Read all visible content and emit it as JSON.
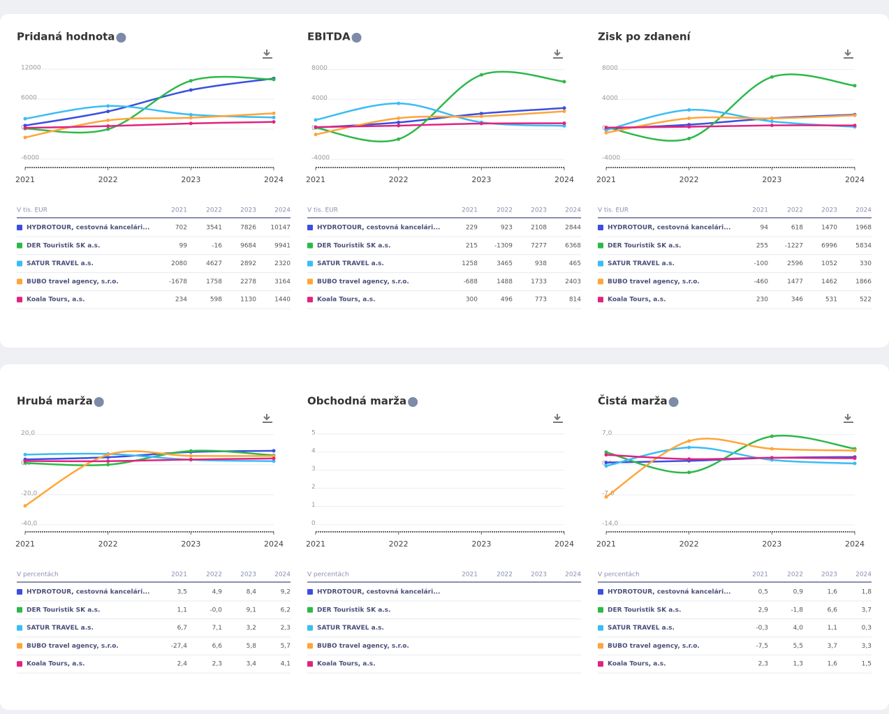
{
  "chart_data": [
    {
      "type": "line",
      "title": "Pridaná hodnota",
      "table_header": "V tis. EUR",
      "categories": [
        "2021",
        "2022",
        "2023",
        "2024"
      ],
      "ylim": [
        -7700,
        13000
      ],
      "yticks": [
        -6000,
        0,
        6000,
        12000
      ],
      "grid": true,
      "series": [
        {
          "name": "HYDROTOUR, cestovná kancelári...",
          "color": "#3a4fe0",
          "values": [
            702,
            3541,
            7826,
            10147
          ]
        },
        {
          "name": "DER Touristik SK a.s.",
          "color": "#2eb84a",
          "values": [
            99,
            -16,
            9684,
            9941
          ]
        },
        {
          "name": "SATUR TRAVEL a.s.",
          "color": "#3bbcf5",
          "values": [
            2080,
            4627,
            2892,
            2320
          ]
        },
        {
          "name": "BUBO travel agency, s.r.o.",
          "color": "#ffa53a",
          "values": [
            -1678,
            1758,
            2278,
            3164
          ]
        },
        {
          "name": "Koala Tours, a.s.",
          "color": "#e0237f",
          "values": [
            234,
            598,
            1130,
            1440
          ]
        }
      ]
    },
    {
      "type": "line",
      "title": "EBITDA",
      "table_header": "V tis. EUR",
      "categories": [
        "2021",
        "2022",
        "2023",
        "2024"
      ],
      "ylim": [
        -5100,
        8700
      ],
      "yticks": [
        -4000,
        0,
        4000,
        8000
      ],
      "grid": true,
      "series": [
        {
          "name": "HYDROTOUR, cestovná kancelári...",
          "color": "#3a4fe0",
          "values": [
            229,
            923,
            2108,
            2844
          ]
        },
        {
          "name": "DER Touristik SK a.s.",
          "color": "#2eb84a",
          "values": [
            215,
            -1309,
            7277,
            6368
          ]
        },
        {
          "name": "SATUR TRAVEL a.s.",
          "color": "#3bbcf5",
          "values": [
            1258,
            3465,
            938,
            465
          ]
        },
        {
          "name": "BUBO travel agency, s.r.o.",
          "color": "#ffa53a",
          "values": [
            -688,
            1488,
            1733,
            2403
          ]
        },
        {
          "name": "Koala Tours, a.s.",
          "color": "#e0237f",
          "values": [
            300,
            496,
            773,
            814
          ]
        }
      ]
    },
    {
      "type": "line",
      "title": "Zisk po zdanení",
      "table_header": "V tis. EUR",
      "categories": [
        "2021",
        "2022",
        "2023",
        "2024"
      ],
      "ylim": [
        -5100,
        8700
      ],
      "yticks": [
        -4000,
        0,
        4000,
        8000
      ],
      "grid": true,
      "series": [
        {
          "name": "HYDROTOUR, cestovná kancelári...",
          "color": "#3a4fe0",
          "values": [
            94,
            618,
            1470,
            1968
          ]
        },
        {
          "name": "DER Touristik SK a.s.",
          "color": "#2eb84a",
          "values": [
            255,
            -1227,
            6996,
            5834
          ]
        },
        {
          "name": "SATUR TRAVEL a.s.",
          "color": "#3bbcf5",
          "values": [
            -100,
            2596,
            1052,
            330
          ]
        },
        {
          "name": "BUBO travel agency, s.r.o.",
          "color": "#ffa53a",
          "values": [
            -460,
            1477,
            1462,
            1866
          ]
        },
        {
          "name": "Koala Tours, a.s.",
          "color": "#e0237f",
          "values": [
            230,
            346,
            531,
            522
          ]
        }
      ]
    },
    {
      "type": "line",
      "title": "Hrubá marža",
      "table_header": "V percentách",
      "categories": [
        "2021",
        "2022",
        "2023",
        "2024"
      ],
      "ylim": [
        -44.7,
        24
      ],
      "yticks": [
        {
          "value": -40,
          "label": "-40,0"
        },
        {
          "value": -20,
          "label": "-20,0"
        },
        {
          "value": 0,
          "label": "0,0"
        },
        {
          "value": 20,
          "label": "20,0"
        }
      ],
      "grid": true,
      "series": [
        {
          "name": "HYDROTOUR, cestovná kancelári...",
          "color": "#3a4fe0",
          "values": [
            3.5,
            4.9,
            8.4,
            9.2
          ],
          "value_labels": [
            "3,5",
            "4,9",
            "8,4",
            "9,2"
          ]
        },
        {
          "name": "DER Touristik SK a.s.",
          "color": "#2eb84a",
          "values": [
            1.1,
            -0.04,
            9.1,
            6.2
          ],
          "value_labels": [
            "1,1",
            "-0,0",
            "9,1",
            "6,2"
          ]
        },
        {
          "name": "SATUR TRAVEL a.s.",
          "color": "#3bbcf5",
          "values": [
            6.7,
            7.1,
            3.2,
            2.3
          ],
          "value_labels": [
            "6,7",
            "7,1",
            "3,2",
            "2,3"
          ]
        },
        {
          "name": "BUBO travel agency, s.r.o.",
          "color": "#ffa53a",
          "values": [
            -27.4,
            6.6,
            5.8,
            5.7
          ],
          "value_labels": [
            "-27,4",
            "6,6",
            "5,8",
            "5,7"
          ]
        },
        {
          "name": "Koala Tours, a.s.",
          "color": "#e0237f",
          "values": [
            2.4,
            2.3,
            3.4,
            4.1
          ],
          "value_labels": [
            "2,4",
            "2,3",
            "3,4",
            "4,1"
          ]
        }
      ]
    },
    {
      "type": "line",
      "title": "Obchodná marža",
      "table_header": "V percentách",
      "categories": [
        "2021",
        "2022",
        "2023",
        "2024"
      ],
      "ylim": [
        -0.4,
        5.3
      ],
      "yticks": [
        0,
        1,
        2,
        3,
        4,
        5
      ],
      "grid": true,
      "series": [
        {
          "name": "HYDROTOUR, cestovná kancelári...",
          "color": "#3a4fe0",
          "values": [
            null,
            null,
            null,
            null
          ]
        },
        {
          "name": "DER Touristik SK a.s.",
          "color": "#2eb84a",
          "values": [
            null,
            null,
            null,
            null
          ]
        },
        {
          "name": "SATUR TRAVEL a.s.",
          "color": "#3bbcf5",
          "values": [
            null,
            null,
            null,
            null
          ]
        },
        {
          "name": "BUBO travel agency, s.r.o.",
          "color": "#ffa53a",
          "values": [
            null,
            null,
            null,
            null
          ]
        },
        {
          "name": "Koala Tours, a.s.",
          "color": "#e0237f",
          "values": [
            null,
            null,
            null,
            null
          ]
        }
      ]
    },
    {
      "type": "line",
      "title": "Čistá marža",
      "table_header": "V percentách",
      "categories": [
        "2021",
        "2022",
        "2023",
        "2024"
      ],
      "ylim": [
        -15.6,
        8.4
      ],
      "yticks": [
        {
          "value": -14,
          "label": "-14,0"
        },
        {
          "value": -7,
          "label": "-7,0"
        },
        {
          "value": 0,
          "label": "0,0"
        },
        {
          "value": 7,
          "label": "7,0"
        }
      ],
      "grid": true,
      "series": [
        {
          "name": "HYDROTOUR, cestovná kancelári...",
          "color": "#3a4fe0",
          "values": [
            0.5,
            0.9,
            1.6,
            1.8
          ],
          "value_labels": [
            "0,5",
            "0,9",
            "1,6",
            "1,8"
          ]
        },
        {
          "name": "DER Touristik SK a.s.",
          "color": "#2eb84a",
          "values": [
            2.9,
            -1.8,
            6.6,
            3.7
          ],
          "value_labels": [
            "2,9",
            "-1,8",
            "6,6",
            "3,7"
          ]
        },
        {
          "name": "SATUR TRAVEL a.s.",
          "color": "#3bbcf5",
          "values": [
            -0.3,
            4.0,
            1.1,
            0.3
          ],
          "value_labels": [
            "-0,3",
            "4,0",
            "1,1",
            "0,3"
          ]
        },
        {
          "name": "BUBO travel agency, s.r.o.",
          "color": "#ffa53a",
          "values": [
            -7.5,
            5.5,
            3.7,
            3.3
          ],
          "value_labels": [
            "-7,5",
            "5,5",
            "3,7",
            "3,3"
          ]
        },
        {
          "name": "Koala Tours, a.s.",
          "color": "#e0237f",
          "values": [
            2.3,
            1.3,
            1.6,
            1.5
          ],
          "value_labels": [
            "2,3",
            "1,3",
            "1,6",
            "1,5"
          ]
        }
      ]
    }
  ]
}
